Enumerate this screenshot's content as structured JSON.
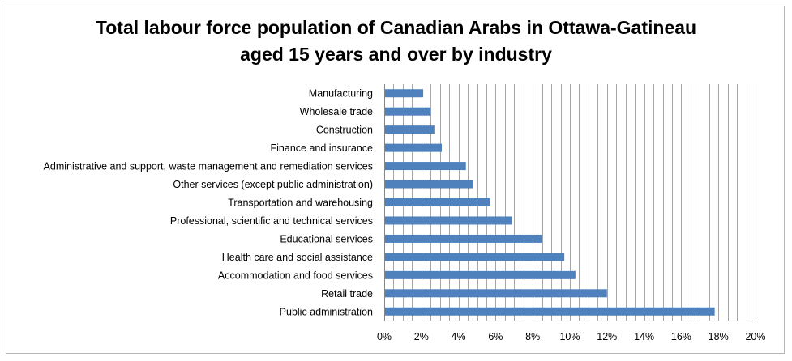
{
  "chart_data": {
    "type": "bar",
    "orientation": "horizontal",
    "title_lines": [
      "Total labour force population of Canadian Arabs in Ottawa-Gatineau",
      "aged 15 years and over by industry"
    ],
    "categories": [
      "Manufacturing",
      "Wholesale trade",
      "Construction",
      "Finance and insurance",
      "Administrative and support, waste management and remediation services",
      "Other services (except public administration)",
      "Transportation and warehousing",
      "Professional, scientific and technical services",
      "Educational services",
      "Health care and social assistance",
      "Accommodation and food services",
      "Retail trade",
      "Public administration"
    ],
    "values": [
      2.1,
      2.5,
      2.7,
      3.1,
      4.4,
      4.8,
      5.7,
      6.9,
      8.5,
      9.7,
      10.3,
      12.0,
      17.8
    ],
    "xlim": [
      0,
      20
    ],
    "x_ticks": [
      0,
      2,
      4,
      6,
      8,
      10,
      12,
      14,
      16,
      18,
      20
    ],
    "x_tick_labels": [
      "0%",
      "2%",
      "4%",
      "6%",
      "8%",
      "10%",
      "12%",
      "14%",
      "16%",
      "18%",
      "20%"
    ],
    "minor_gridline_step": 0.5,
    "grid": true,
    "bar_color": "#4f81bd",
    "grid_color": "#a6a6a6",
    "xlabel": "",
    "ylabel": "",
    "legend": "none"
  }
}
